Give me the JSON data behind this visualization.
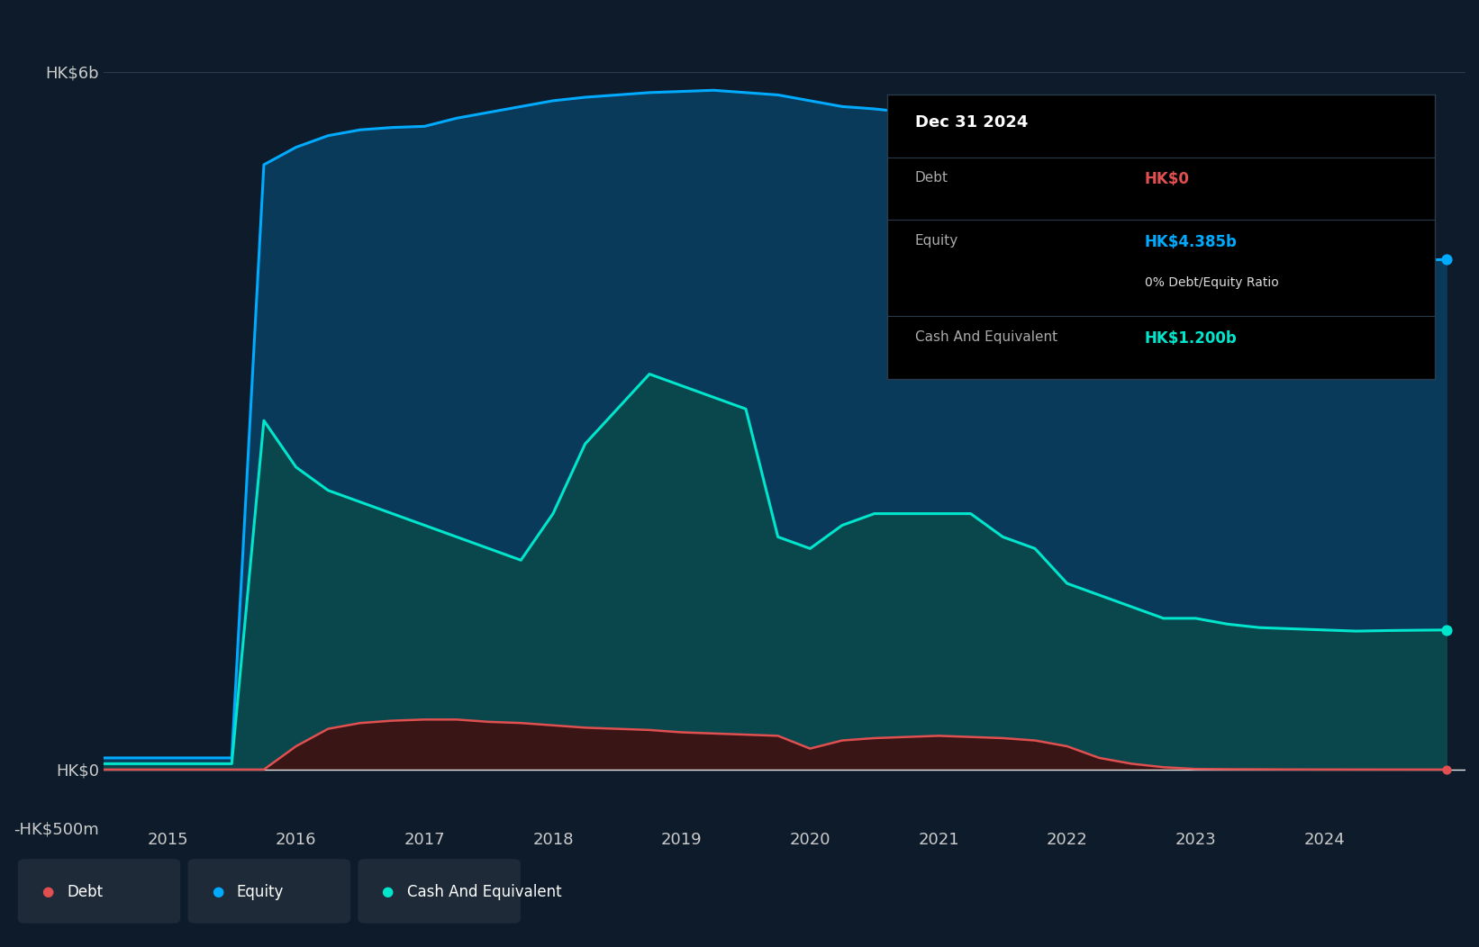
{
  "bg_color": "#0d1b2a",
  "plot_bg_color": "#0d1b2a",
  "ylim": [
    -500000000,
    6500000000
  ],
  "yticks": [
    -500000000,
    0,
    6000000000
  ],
  "ytick_labels": [
    "-HK$500m",
    "HK$0",
    "HK$6b"
  ],
  "grid_color": "#2a3a4a",
  "line_color_debt": "#e05050",
  "line_color_equity": "#00aaff",
  "line_color_cash": "#00e5cc",
  "fill_color_equity": "#0a3a5a",
  "fill_color_cash": "#0a4a4a",
  "fill_color_debt": "#3a1515",
  "text_color": "#cccccc",
  "legend_bg": "#1e2a38",
  "equity_data": {
    "dates": [
      2014.5,
      2015.5,
      2015.75,
      2016.0,
      2016.25,
      2016.5,
      2016.75,
      2017.0,
      2017.25,
      2017.5,
      2017.75,
      2018.0,
      2018.25,
      2018.5,
      2018.75,
      2019.0,
      2019.25,
      2019.5,
      2019.75,
      2020.0,
      2020.25,
      2020.5,
      2020.75,
      2021.0,
      2021.25,
      2021.5,
      2021.75,
      2022.0,
      2022.25,
      2022.5,
      2022.75,
      2023.0,
      2023.25,
      2023.5,
      2023.75,
      2024.0,
      2024.25,
      2024.5,
      2024.75,
      2024.95
    ],
    "values": [
      100000000,
      100000000,
      5200000000,
      5350000000,
      5450000000,
      5500000000,
      5520000000,
      5530000000,
      5600000000,
      5650000000,
      5700000000,
      5750000000,
      5780000000,
      5800000000,
      5820000000,
      5830000000,
      5840000000,
      5820000000,
      5800000000,
      5750000000,
      5700000000,
      5680000000,
      5650000000,
      5650000000,
      5640000000,
      5620000000,
      5600000000,
      5580000000,
      5200000000,
      5000000000,
      4800000000,
      4600000000,
      4500000000,
      4450000000,
      4400000000,
      4380000000,
      4360000000,
      4370000000,
      4380000000,
      4385000000
    ]
  },
  "cash_data": {
    "dates": [
      2014.5,
      2015.5,
      2015.75,
      2016.0,
      2016.25,
      2016.5,
      2016.75,
      2017.0,
      2017.25,
      2017.5,
      2017.75,
      2018.0,
      2018.25,
      2018.5,
      2018.75,
      2019.0,
      2019.25,
      2019.5,
      2019.75,
      2020.0,
      2020.25,
      2020.5,
      2020.75,
      2021.0,
      2021.25,
      2021.5,
      2021.75,
      2022.0,
      2022.25,
      2022.5,
      2022.75,
      2023.0,
      2023.25,
      2023.5,
      2023.75,
      2024.0,
      2024.25,
      2024.5,
      2024.75,
      2024.95
    ],
    "values": [
      50000000,
      50000000,
      3000000000,
      2600000000,
      2400000000,
      2300000000,
      2200000000,
      2100000000,
      2000000000,
      1900000000,
      1800000000,
      2200000000,
      2800000000,
      3100000000,
      3400000000,
      3300000000,
      3200000000,
      3100000000,
      2000000000,
      1900000000,
      2100000000,
      2200000000,
      2200000000,
      2200000000,
      2200000000,
      2000000000,
      1900000000,
      1600000000,
      1500000000,
      1400000000,
      1300000000,
      1300000000,
      1250000000,
      1220000000,
      1210000000,
      1200000000,
      1190000000,
      1195000000,
      1198000000,
      1200000000
    ]
  },
  "debt_data": {
    "dates": [
      2014.5,
      2015.5,
      2015.75,
      2016.0,
      2016.25,
      2016.5,
      2016.75,
      2017.0,
      2017.25,
      2017.5,
      2017.75,
      2018.0,
      2018.25,
      2018.5,
      2018.75,
      2019.0,
      2019.25,
      2019.5,
      2019.75,
      2020.0,
      2020.25,
      2020.5,
      2020.75,
      2021.0,
      2021.25,
      2021.5,
      2021.75,
      2022.0,
      2022.25,
      2022.5,
      2022.75,
      2023.0,
      2023.25,
      2023.5,
      2023.75,
      2024.0,
      2024.25,
      2024.5,
      2024.75,
      2024.95
    ],
    "values": [
      0,
      0,
      0,
      200000000,
      350000000,
      400000000,
      420000000,
      430000000,
      430000000,
      410000000,
      400000000,
      380000000,
      360000000,
      350000000,
      340000000,
      320000000,
      310000000,
      300000000,
      290000000,
      180000000,
      250000000,
      270000000,
      280000000,
      290000000,
      280000000,
      270000000,
      250000000,
      200000000,
      100000000,
      50000000,
      20000000,
      5000000,
      3000000,
      2000000,
      1000000,
      500000,
      300000,
      200000,
      100000,
      0
    ]
  },
  "xlim": [
    2014.5,
    2025.1
  ],
  "xtick_years": [
    2015,
    2016,
    2017,
    2018,
    2019,
    2020,
    2021,
    2022,
    2023,
    2024
  ],
  "tooltip": {
    "date": "Dec 31 2024",
    "debt_label": "Debt",
    "debt_value": "HK$0",
    "equity_label": "Equity",
    "equity_value": "HK$4.385b",
    "ratio": "0% Debt/Equity Ratio",
    "cash_label": "Cash And Equivalent",
    "cash_value": "HK$1.200b"
  },
  "legend_items": [
    {
      "label": "Debt",
      "color": "#e05050"
    },
    {
      "label": "Equity",
      "color": "#00aaff"
    },
    {
      "label": "Cash And Equivalent",
      "color": "#00e5cc"
    }
  ]
}
